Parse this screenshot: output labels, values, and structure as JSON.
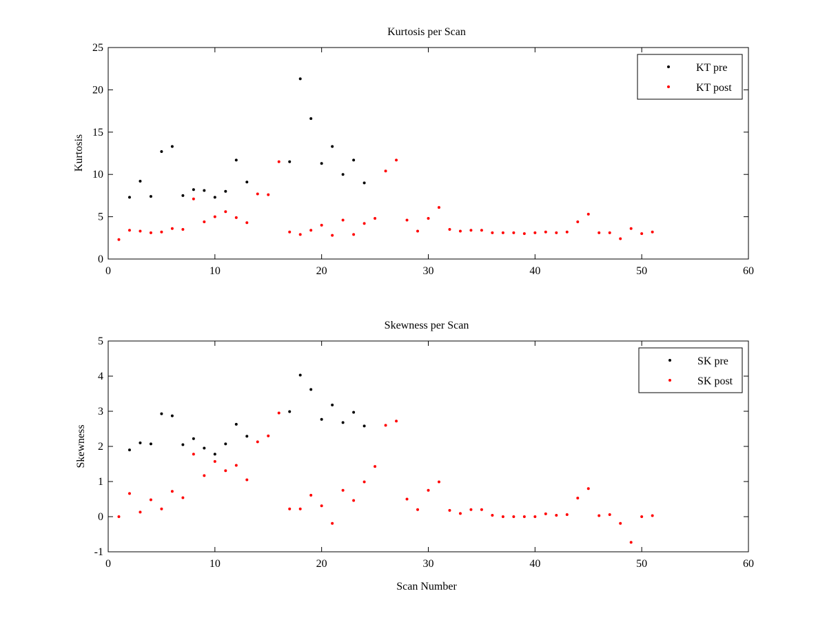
{
  "chart_data": [
    {
      "type": "scatter",
      "title": "Kurtosis per Scan",
      "xlabel": "",
      "ylabel": "Kurtosis",
      "xlim": [
        0,
        60
      ],
      "ylim": [
        0,
        25
      ],
      "xticks": [
        0,
        10,
        20,
        30,
        40,
        50,
        60
      ],
      "yticks": [
        0,
        5,
        10,
        15,
        20,
        25
      ],
      "grid": false,
      "legend_position": "top-right",
      "series": [
        {
          "name": "KT pre",
          "color": "#000000",
          "x": [
            2,
            3,
            4,
            5,
            6,
            7,
            8,
            9,
            10,
            11,
            12,
            13,
            17,
            18,
            19,
            20,
            21,
            22,
            23,
            24
          ],
          "y": [
            7.3,
            9.2,
            7.4,
            12.7,
            13.3,
            7.5,
            8.2,
            8.1,
            7.3,
            8.0,
            11.7,
            9.1,
            11.5,
            21.3,
            16.6,
            11.3,
            13.3,
            10.0,
            11.7,
            9.0
          ]
        },
        {
          "name": "KT post",
          "color": "#ff0000",
          "x": [
            1,
            2,
            3,
            4,
            5,
            6,
            7,
            8,
            9,
            10,
            11,
            12,
            13,
            14,
            15,
            16,
            17,
            18,
            19,
            20,
            21,
            22,
            23,
            24,
            25,
            26,
            27,
            28,
            29,
            30,
            31,
            32,
            33,
            34,
            35,
            36,
            37,
            38,
            39,
            40,
            41,
            42,
            43,
            44,
            45,
            46,
            47,
            48,
            49,
            50,
            51
          ],
          "y": [
            2.3,
            3.4,
            3.3,
            3.1,
            3.2,
            3.6,
            3.5,
            7.1,
            4.4,
            5.0,
            5.6,
            4.9,
            4.3,
            7.7,
            7.6,
            11.5,
            3.2,
            2.9,
            3.4,
            4.0,
            2.8,
            4.6,
            2.9,
            4.2,
            4.8,
            10.4,
            11.7,
            4.6,
            3.3,
            4.8,
            6.1,
            3.5,
            3.3,
            3.4,
            3.4,
            3.1,
            3.1,
            3.1,
            3.0,
            3.1,
            3.2,
            3.1,
            3.2,
            4.4,
            5.3,
            3.1,
            3.1,
            2.4,
            3.6,
            3.0,
            3.2
          ]
        }
      ]
    },
    {
      "type": "scatter",
      "title": "Skewness per Scan",
      "xlabel": "Scan Number",
      "ylabel": "Skewness",
      "xlim": [
        0,
        60
      ],
      "ylim": [
        -1,
        5
      ],
      "xticks": [
        0,
        10,
        20,
        30,
        40,
        50,
        60
      ],
      "yticks": [
        -1,
        0,
        1,
        2,
        3,
        4,
        5
      ],
      "grid": false,
      "legend_position": "top-right",
      "series": [
        {
          "name": "SK pre",
          "color": "#000000",
          "x": [
            2,
            3,
            4,
            5,
            6,
            7,
            8,
            9,
            10,
            11,
            12,
            13,
            17,
            18,
            19,
            20,
            21,
            22,
            23,
            24
          ],
          "y": [
            1.9,
            2.1,
            2.07,
            2.93,
            2.87,
            2.05,
            2.22,
            1.95,
            1.78,
            2.07,
            2.63,
            2.29,
            2.99,
            4.03,
            3.62,
            2.77,
            3.18,
            2.68,
            2.97,
            2.58
          ]
        },
        {
          "name": "SK post",
          "color": "#ff0000",
          "x": [
            1,
            2,
            3,
            4,
            5,
            6,
            7,
            8,
            9,
            10,
            11,
            12,
            13,
            14,
            15,
            16,
            17,
            18,
            19,
            20,
            21,
            22,
            23,
            24,
            25,
            26,
            27,
            28,
            29,
            30,
            31,
            32,
            33,
            34,
            35,
            36,
            37,
            38,
            39,
            40,
            41,
            42,
            43,
            44,
            45,
            46,
            47,
            48,
            49,
            50,
            51
          ],
          "y": [
            0.0,
            0.66,
            0.13,
            0.48,
            0.22,
            0.72,
            0.54,
            1.78,
            1.17,
            1.57,
            1.31,
            1.46,
            1.05,
            2.13,
            2.3,
            2.95,
            0.22,
            0.22,
            0.61,
            0.31,
            -0.19,
            0.75,
            0.46,
            0.99,
            1.43,
            2.6,
            2.72,
            0.5,
            0.2,
            0.75,
            0.99,
            0.18,
            0.09,
            0.2,
            0.2,
            0.04,
            0.0,
            0.0,
            0.0,
            0.0,
            0.08,
            0.04,
            0.06,
            0.53,
            0.8,
            0.03,
            0.06,
            -0.19,
            -0.73,
            0.0,
            0.03
          ]
        }
      ]
    }
  ]
}
